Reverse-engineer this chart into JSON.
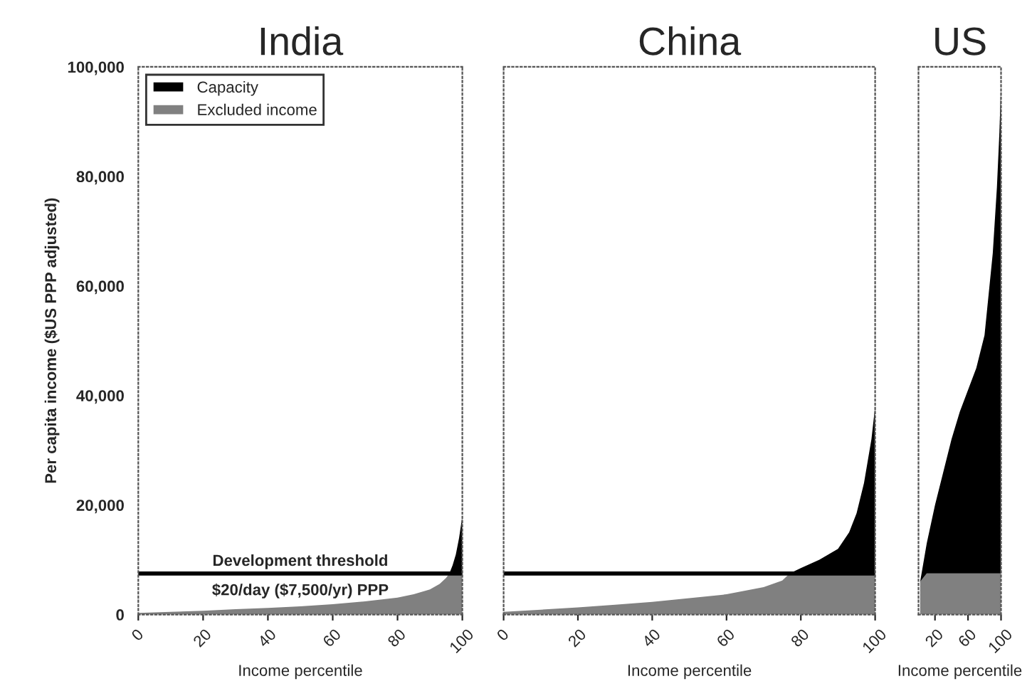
{
  "chart_data": [
    {
      "type": "area",
      "title": "India",
      "xlabel": "Income percentile",
      "ylabel": "Per capita income ($US PPP adjusted)",
      "stacked": true,
      "legend": "top left",
      "grid": false,
      "x": [
        0,
        10,
        20,
        30,
        40,
        50,
        60,
        70,
        80,
        85,
        90,
        93,
        95,
        96,
        97,
        98,
        99,
        100
      ],
      "series": [
        {
          "name": "Excluded income",
          "color": "#808080",
          "values": [
            300,
            500,
            700,
            1000,
            1200,
            1500,
            1900,
            2400,
            3100,
            3700,
            4600,
            5600,
            6700,
            7500,
            7500,
            7500,
            7500,
            7500
          ]
        },
        {
          "name": "Capacity",
          "color": "#000000",
          "values": [
            0,
            0,
            0,
            0,
            0,
            0,
            0,
            0,
            0,
            0,
            0,
            0,
            0,
            0,
            1500,
            3500,
            6500,
            10500
          ]
        }
      ],
      "xlim": [
        0,
        100
      ],
      "xticks": [
        0,
        20,
        40,
        60,
        80,
        100
      ],
      "ylim": [
        0,
        100000
      ],
      "yticks": [
        {
          "value": 0,
          "label": "0"
        },
        {
          "value": 20000,
          "label": "20,000"
        },
        {
          "value": 40000,
          "label": "40,000"
        },
        {
          "value": 60000,
          "label": "60,000"
        },
        {
          "value": 80000,
          "label": "80,000"
        },
        {
          "value": 100000,
          "label": "100,000"
        }
      ],
      "ref_lines": [
        {
          "axis": "y",
          "value": 7500,
          "label": "Development threshold",
          "color": "#000000"
        }
      ],
      "annotations": [
        "$20/day ($7,500/yr) PPP"
      ]
    },
    {
      "type": "area",
      "title": "China",
      "xlabel": "Income percentile",
      "stacked": true,
      "grid": false,
      "tick_labels": "x",
      "x": [
        0,
        10,
        20,
        30,
        40,
        50,
        60,
        70,
        75,
        77,
        80,
        85,
        90,
        93,
        95,
        97,
        98,
        99,
        100
      ],
      "series": [
        {
          "color": "#808080",
          "values": [
            500,
            900,
            1300,
            1800,
            2300,
            3000,
            3700,
            5000,
            6200,
            7500,
            7500,
            7500,
            7500,
            7500,
            7500,
            7500,
            7500,
            7500,
            7500
          ]
        },
        {
          "color": "#000000",
          "values": [
            0,
            0,
            0,
            0,
            0,
            0,
            0,
            0,
            0,
            0,
            1000,
            2500,
            4500,
            7500,
            11000,
            16500,
            20500,
            24500,
            30500
          ]
        }
      ],
      "xlim": [
        0,
        100
      ],
      "xticks": [
        0,
        20,
        40,
        60,
        80,
        100
      ],
      "ylim": [
        0,
        100000
      ],
      "ref_lines": [
        {
          "axis": "y",
          "value": 7500,
          "color": "#000000"
        }
      ]
    },
    {
      "type": "area",
      "title": "US",
      "xlabel": "Income percentile",
      "stacked": true,
      "grid": false,
      "tick_labels": "x",
      "x": [
        2,
        10,
        20,
        30,
        40,
        50,
        60,
        70,
        80,
        90,
        95,
        98,
        100
      ],
      "series": [
        {
          "color": "#808080",
          "values": [
            6000,
            7500,
            7500,
            7500,
            7500,
            7500,
            7500,
            7500,
            7500,
            7500,
            7500,
            7500,
            7500
          ]
        },
        {
          "color": "#000000",
          "values": [
            0,
            5500,
            12500,
            18500,
            24500,
            29500,
            33500,
            37500,
            43500,
            58500,
            70500,
            80500,
            89500
          ]
        }
      ],
      "xlim": [
        0,
        100
      ],
      "xticks": [
        20,
        60,
        100
      ],
      "ylim": [
        0,
        100000
      ]
    }
  ]
}
